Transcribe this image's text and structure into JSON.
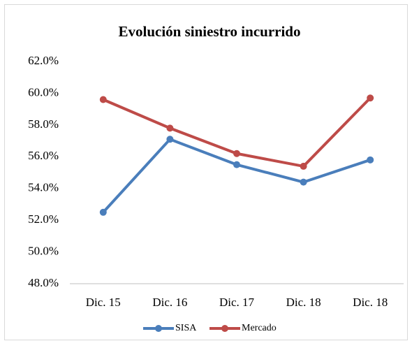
{
  "chart_data": {
    "type": "line",
    "title": "Evolución siniestro incurrido",
    "categories": [
      "Dic. 15",
      "Dic. 16",
      "Dic. 17",
      "Dic. 18",
      "Dic. 18"
    ],
    "series": [
      {
        "name": "SISA",
        "color": "#4a7ebb",
        "values": [
          52.5,
          57.1,
          55.5,
          54.4,
          55.8
        ]
      },
      {
        "name": "Mercado",
        "color": "#be4b48",
        "values": [
          59.6,
          57.8,
          56.2,
          55.4,
          59.7
        ]
      }
    ],
    "ylim": [
      48,
      62
    ],
    "yticks": [
      {
        "value": 48,
        "label": "48.0%"
      },
      {
        "value": 50,
        "label": "50.0%"
      },
      {
        "value": 52,
        "label": "52.0%"
      },
      {
        "value": 54,
        "label": "54.0%"
      },
      {
        "value": 56,
        "label": "56.0%"
      },
      {
        "value": 58,
        "label": "58.0%"
      },
      {
        "value": 60,
        "label": "60.0%"
      },
      {
        "value": 62,
        "label": "62.0%"
      }
    ],
    "grid": false,
    "legend": "bottom"
  }
}
